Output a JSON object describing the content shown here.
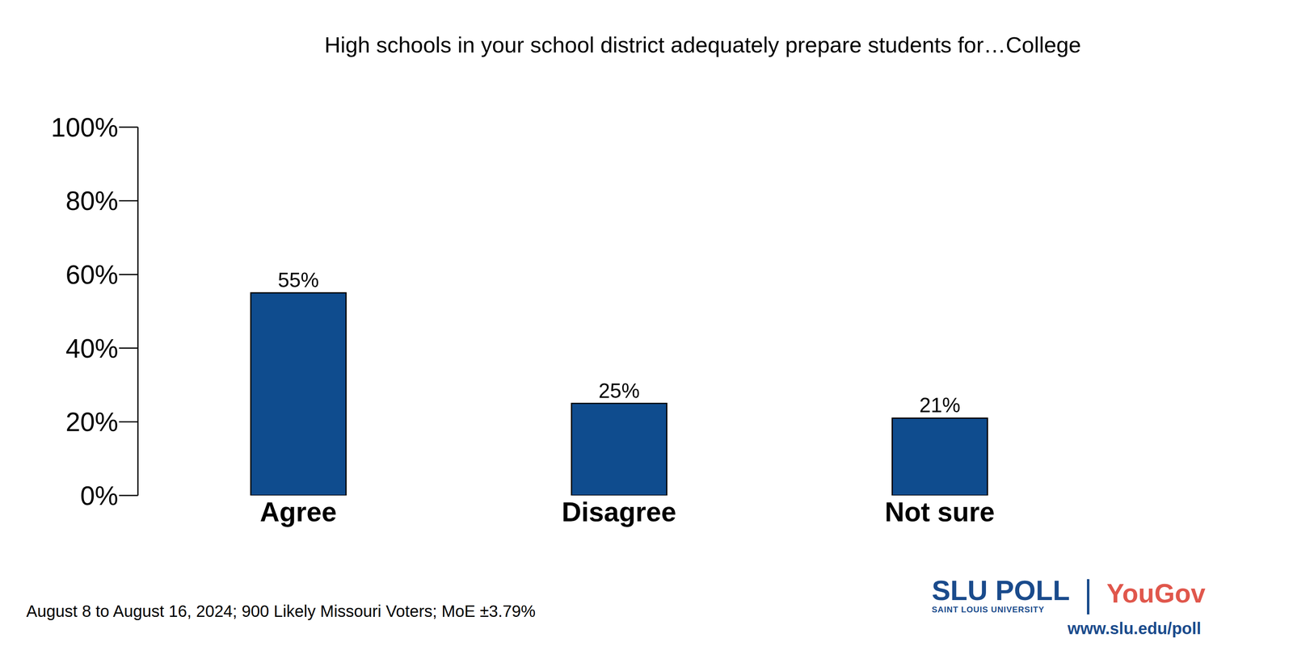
{
  "chart_data": {
    "type": "bar",
    "title": "High schools in your school district adequately prepare students for…College",
    "categories": [
      "Agree",
      "Disagree",
      "Not sure"
    ],
    "values": [
      55,
      25,
      21
    ],
    "value_labels": [
      "55%",
      "25%",
      "21%"
    ],
    "color": "#0f4c8e",
    "ylim": [
      0,
      100
    ],
    "yticks": [
      {
        "value": 0,
        "label": "0%"
      },
      {
        "value": 20,
        "label": "20%"
      },
      {
        "value": 40,
        "label": "40%"
      },
      {
        "value": 60,
        "label": "60%"
      },
      {
        "value": 80,
        "label": "80%"
      },
      {
        "value": 100,
        "label": "100%"
      }
    ],
    "grid": false,
    "data_labels": true,
    "footnote": "August 8 to August 16, 2024; 900 Likely Missouri Voters; MoE ±3.79%",
    "branding": {
      "poll": "SLU POLL",
      "university": "SAINT LOUIS UNIVERSITY",
      "partner": "YouGov",
      "url": "www.slu.edu/poll"
    }
  }
}
